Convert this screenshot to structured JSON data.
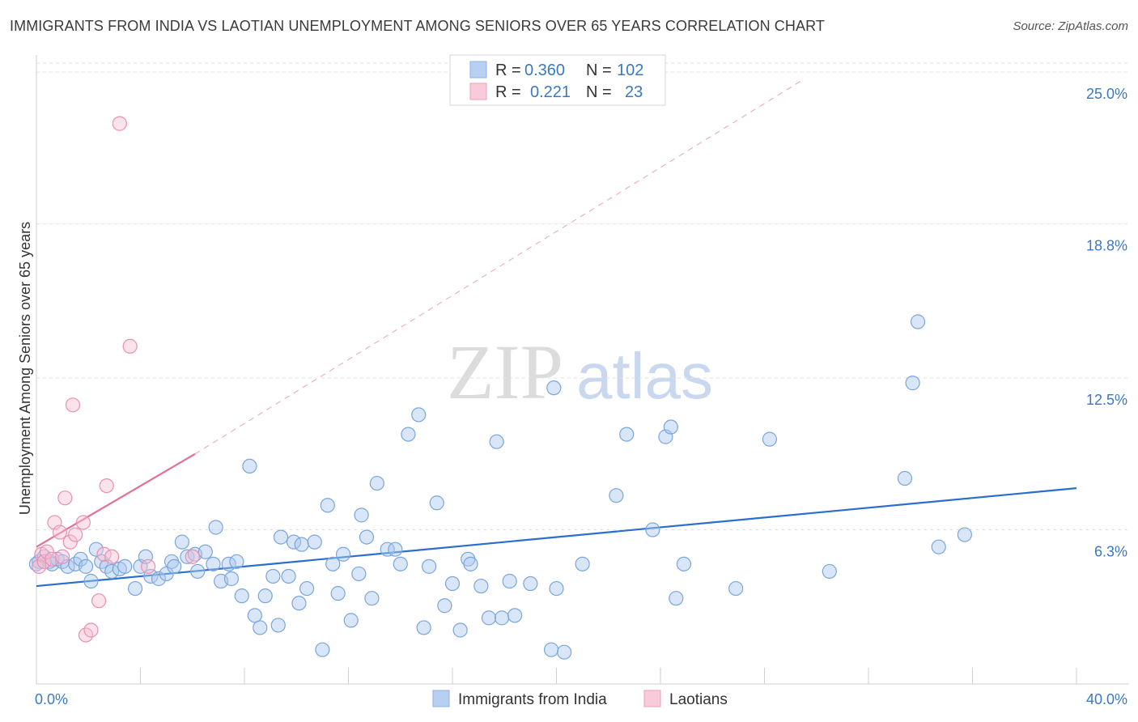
{
  "title": "IMMIGRANTS FROM INDIA VS LAOTIAN UNEMPLOYMENT AMONG SENIORS OVER 65 YEARS CORRELATION CHART",
  "source": "Source: ZipAtlas.com",
  "watermark": {
    "zip": "ZIP",
    "atlas": "atlas"
  },
  "chart_data": {
    "type": "scatter",
    "xlabel": "",
    "ylabel": "Unemployment Among Seniors over 65 years",
    "xlim": [
      0,
      40
    ],
    "ylim": [
      0,
      25.5
    ],
    "x_tick_labels": [
      {
        "value": 0,
        "label": "0.0%"
      },
      {
        "value": 40,
        "label": "40.0%"
      }
    ],
    "x_minor_ticks": [
      4,
      8,
      12,
      16,
      20,
      24,
      28,
      32,
      36,
      40
    ],
    "y_ticks": [
      {
        "value": 6.3,
        "label": "6.3%"
      },
      {
        "value": 12.5,
        "label": "12.5%"
      },
      {
        "value": 18.8,
        "label": "18.8%"
      },
      {
        "value": 25.0,
        "label": "25.0%"
      }
    ],
    "grid": true,
    "legend": {
      "position": "top-center",
      "rows": [
        {
          "r_label": "R =",
          "r_value": "0.360",
          "n_label": "N =",
          "n_value": "102"
        },
        {
          "r_label": "R =",
          "r_value": "0.221",
          "n_label": "N =",
          "n_value": "23"
        }
      ]
    },
    "series": [
      {
        "name": "Immigrants from India",
        "color": "#a9c8ef",
        "stroke": "#7aa6dc",
        "trend_color": "#2a6fcf",
        "trend": {
          "x0": 0,
          "y0": 4.0,
          "x1": 40,
          "y1": 8.0,
          "dashed_to": null
        },
        "points": [
          [
            0.1,
            5.0
          ],
          [
            0.3,
            5.2
          ],
          [
            0.5,
            5.0
          ],
          [
            0.6,
            4.9
          ],
          [
            0.8,
            5.1
          ],
          [
            1.0,
            5.0
          ],
          [
            1.2,
            4.8
          ],
          [
            1.5,
            4.9
          ],
          [
            1.7,
            5.1
          ],
          [
            1.9,
            4.8
          ],
          [
            2.1,
            4.2
          ],
          [
            2.3,
            5.5
          ],
          [
            2.5,
            5.0
          ],
          [
            2.7,
            4.8
          ],
          [
            2.9,
            4.6
          ],
          [
            3.2,
            4.7
          ],
          [
            3.4,
            4.8
          ],
          [
            3.8,
            3.9
          ],
          [
            4.0,
            4.8
          ],
          [
            4.2,
            5.2
          ],
          [
            4.4,
            4.4
          ],
          [
            4.7,
            4.3
          ],
          [
            5.0,
            4.5
          ],
          [
            5.2,
            5.0
          ],
          [
            5.3,
            4.8
          ],
          [
            5.6,
            5.8
          ],
          [
            5.8,
            5.2
          ],
          [
            6.1,
            5.3
          ],
          [
            6.2,
            4.6
          ],
          [
            6.5,
            5.4
          ],
          [
            6.8,
            4.9
          ],
          [
            6.9,
            6.4
          ],
          [
            7.1,
            4.2
          ],
          [
            7.4,
            4.9
          ],
          [
            7.5,
            4.3
          ],
          [
            7.7,
            5.0
          ],
          [
            7.9,
            3.6
          ],
          [
            8.2,
            8.9
          ],
          [
            8.4,
            2.8
          ],
          [
            8.6,
            2.3
          ],
          [
            8.8,
            3.6
          ],
          [
            9.1,
            4.4
          ],
          [
            9.3,
            2.4
          ],
          [
            9.4,
            6.0
          ],
          [
            9.7,
            4.4
          ],
          [
            9.9,
            5.8
          ],
          [
            10.1,
            3.3
          ],
          [
            10.2,
            5.7
          ],
          [
            10.4,
            3.9
          ],
          [
            10.7,
            5.8
          ],
          [
            11.0,
            1.4
          ],
          [
            11.2,
            7.3
          ],
          [
            11.4,
            4.9
          ],
          [
            11.6,
            3.7
          ],
          [
            11.8,
            5.3
          ],
          [
            12.1,
            2.6
          ],
          [
            12.4,
            4.5
          ],
          [
            12.5,
            6.9
          ],
          [
            12.7,
            6.0
          ],
          [
            12.9,
            3.5
          ],
          [
            13.1,
            8.2
          ],
          [
            13.5,
            5.5
          ],
          [
            13.8,
            5.5
          ],
          [
            14.0,
            4.9
          ],
          [
            14.3,
            10.2
          ],
          [
            14.7,
            11.0
          ],
          [
            14.9,
            2.3
          ],
          [
            15.1,
            4.8
          ],
          [
            15.4,
            7.4
          ],
          [
            15.7,
            3.2
          ],
          [
            16.0,
            4.1
          ],
          [
            16.3,
            2.2
          ],
          [
            16.6,
            5.1
          ],
          [
            16.7,
            4.9
          ],
          [
            17.1,
            4.0
          ],
          [
            17.4,
            2.7
          ],
          [
            17.7,
            9.9
          ],
          [
            17.9,
            2.7
          ],
          [
            18.2,
            4.2
          ],
          [
            18.4,
            2.8
          ],
          [
            19.0,
            4.1
          ],
          [
            19.9,
            12.1
          ],
          [
            20.0,
            3.9
          ],
          [
            19.8,
            1.4
          ],
          [
            20.3,
            1.3
          ],
          [
            21.0,
            4.9
          ],
          [
            22.3,
            7.7
          ],
          [
            22.7,
            10.2
          ],
          [
            23.7,
            6.3
          ],
          [
            24.2,
            10.1
          ],
          [
            24.4,
            10.5
          ],
          [
            24.6,
            3.5
          ],
          [
            24.9,
            4.9
          ],
          [
            26.9,
            3.9
          ],
          [
            28.2,
            10.0
          ],
          [
            30.5,
            4.6
          ],
          [
            33.4,
            8.4
          ],
          [
            33.7,
            12.3
          ],
          [
            33.9,
            14.8
          ],
          [
            34.7,
            5.6
          ],
          [
            35.7,
            6.1
          ],
          [
            0.0,
            4.9
          ]
        ]
      },
      {
        "name": "Laotians",
        "color": "#f7c0d2",
        "stroke": "#ea8fb0",
        "trend_color": "#e07095",
        "trend": {
          "x0": 0,
          "y0": 5.6,
          "x1": 6.1,
          "y1": 9.4,
          "dash_x1": 29.5,
          "dash_y1": 24.7
        },
        "points": [
          [
            0.1,
            4.8
          ],
          [
            0.2,
            5.3
          ],
          [
            0.3,
            5.0
          ],
          [
            0.4,
            5.4
          ],
          [
            0.6,
            5.1
          ],
          [
            0.7,
            6.6
          ],
          [
            0.9,
            6.2
          ],
          [
            1.0,
            5.2
          ],
          [
            1.1,
            7.6
          ],
          [
            1.3,
            5.8
          ],
          [
            1.4,
            11.4
          ],
          [
            1.5,
            6.1
          ],
          [
            1.8,
            6.6
          ],
          [
            1.9,
            2.0
          ],
          [
            2.1,
            2.2
          ],
          [
            2.4,
            3.4
          ],
          [
            2.6,
            5.3
          ],
          [
            2.7,
            8.1
          ],
          [
            2.9,
            5.2
          ],
          [
            3.2,
            22.9
          ],
          [
            3.6,
            13.8
          ],
          [
            4.3,
            4.8
          ],
          [
            6.0,
            5.2
          ]
        ]
      }
    ]
  }
}
